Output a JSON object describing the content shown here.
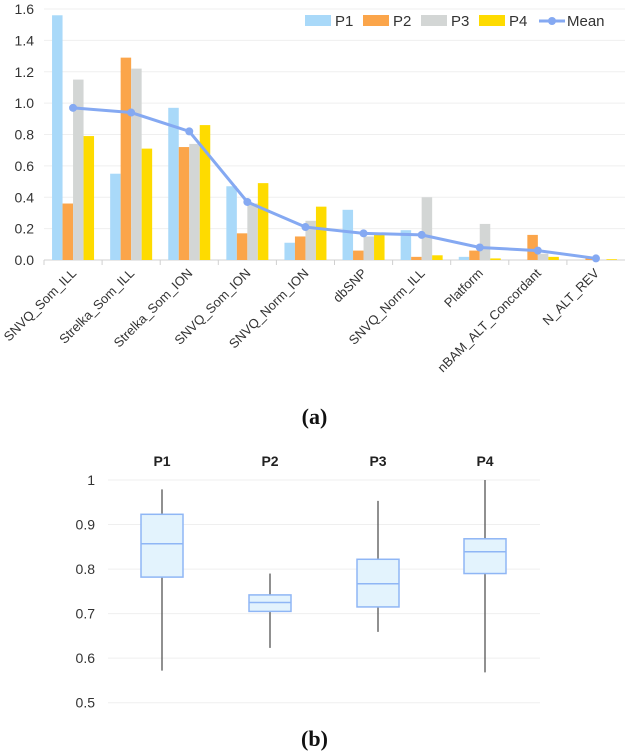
{
  "chart_data": [
    {
      "type": "bar",
      "caption": "(a)",
      "categories": [
        "SNVQ_Som_ILL",
        "Strelka_Som_ILL",
        "Strelka_Som_ION",
        "SNVQ_Som_ION",
        "SNVQ_Norm_ION",
        "dbSNP",
        "SNVQ_Norm_ILL",
        "Platform",
        "nBAM_ALT_Concordant",
        "N_ALT_REV"
      ],
      "series": [
        {
          "name": "P1",
          "color": "#a9d9f9",
          "values": [
            1.56,
            0.55,
            0.97,
            0.47,
            0.11,
            0.32,
            0.19,
            0.02,
            0.0,
            0.0
          ]
        },
        {
          "name": "P2",
          "color": "#fba54a",
          "values": [
            0.36,
            1.29,
            0.72,
            0.17,
            0.15,
            0.06,
            0.02,
            0.06,
            0.16,
            0.01
          ]
        },
        {
          "name": "P3",
          "color": "#d3d6d5",
          "values": [
            1.15,
            1.22,
            0.74,
            0.36,
            0.25,
            0.15,
            0.4,
            0.23,
            0.04,
            0.0
          ]
        },
        {
          "name": "P4",
          "color": "#fedb00",
          "values": [
            0.79,
            0.71,
            0.86,
            0.49,
            0.34,
            0.16,
            0.03,
            0.01,
            0.02,
            0.005
          ]
        }
      ],
      "line_series": {
        "name": "Mean",
        "color": "#85a9f2",
        "values": [
          0.97,
          0.94,
          0.82,
          0.37,
          0.21,
          0.17,
          0.16,
          0.08,
          0.06,
          0.01
        ]
      },
      "ylim": [
        0,
        1.6
      ],
      "yticks": [
        "0.0",
        "0.2",
        "0.4",
        "0.6",
        "0.8",
        "1.0",
        "1.2",
        "1.4",
        "1.6"
      ],
      "grid": true,
      "legend": "top-right"
    },
    {
      "type": "box",
      "caption": "(b)",
      "categories": [
        "P1",
        "P2",
        "P3",
        "P4"
      ],
      "boxes": [
        {
          "name": "P1",
          "min": 0.572,
          "q1": 0.782,
          "median": 0.857,
          "q3": 0.923,
          "max": 0.979
        },
        {
          "name": "P2",
          "min": 0.623,
          "q1": 0.705,
          "median": 0.725,
          "q3": 0.742,
          "max": 0.79
        },
        {
          "name": "P3",
          "min": 0.659,
          "q1": 0.715,
          "median": 0.767,
          "q3": 0.822,
          "max": 0.953
        },
        {
          "name": "P4",
          "min": 0.568,
          "q1": 0.79,
          "median": 0.839,
          "q3": 0.868,
          "max": 1.0
        }
      ],
      "ylim": [
        0.5,
        1.0
      ],
      "yticks": [
        "0.5",
        "0.6",
        "0.7",
        "0.8",
        "0.9",
        "1"
      ],
      "grid": true,
      "box_fill": "#e3f3fd",
      "box_stroke": "#8fb6f5"
    }
  ]
}
